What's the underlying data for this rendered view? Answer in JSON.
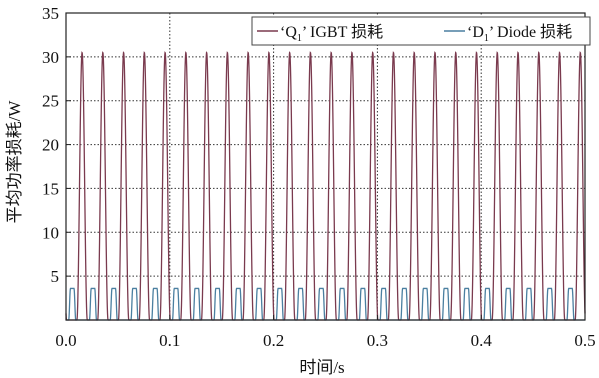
{
  "chart_data": {
    "type": "line",
    "title": "",
    "xlabel": "时间/s",
    "ylabel": "平均功率损耗/W",
    "xlim": [
      0,
      0.5
    ],
    "ylim": [
      0,
      35
    ],
    "x_ticks": [
      0.0,
      0.1,
      0.2,
      0.3,
      0.4,
      0.5
    ],
    "x_tick_labels": [
      "0.0",
      "0.1",
      "0.2",
      "0.3",
      "0.4",
      "0.5"
    ],
    "y_ticks": [
      0,
      5,
      10,
      15,
      20,
      25,
      30,
      35
    ],
    "y_tick_labels": [
      "",
      "5",
      "10",
      "15",
      "20",
      "25",
      "30",
      "35"
    ],
    "grid": "dotted",
    "legend_position": "top-right",
    "period_s": 0.02,
    "series": [
      {
        "name_parts": [
          "‘Q",
          "1",
          "’ IGBT 损耗"
        ],
        "color": "#7a3a4e",
        "peak": 30.5,
        "peak_x_first": 0.0155,
        "base": 0,
        "shape": "periodic-peak"
      },
      {
        "name_parts": [
          "‘D",
          "1",
          "’ Diode 损耗"
        ],
        "color": "#4a7fa0",
        "peak": 3.6,
        "plateau_center_first": 0.006,
        "base": 0,
        "shape": "periodic-plateau"
      }
    ]
  }
}
